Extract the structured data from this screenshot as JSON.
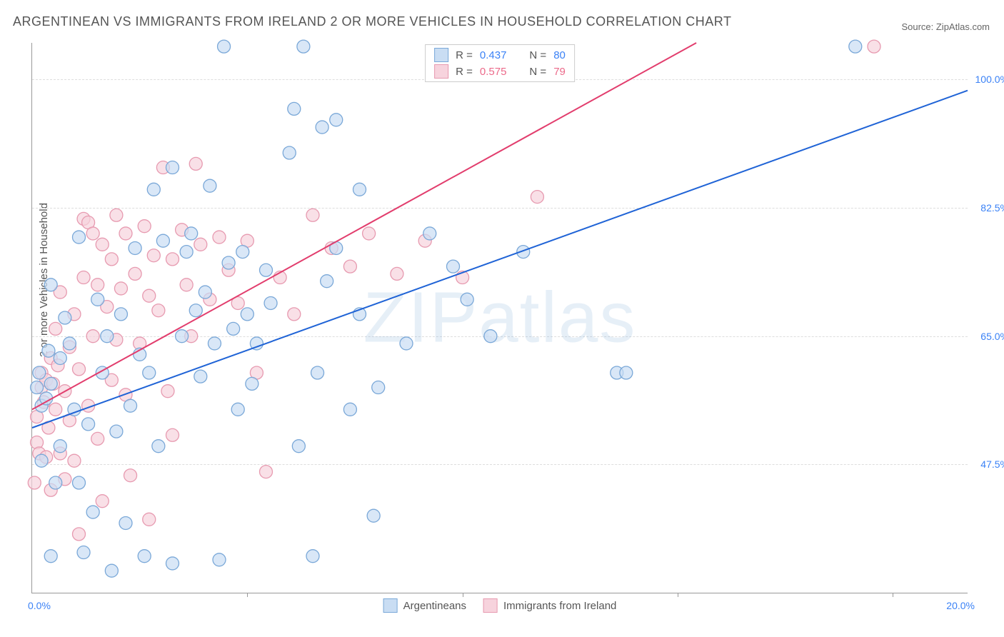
{
  "title": "ARGENTINEAN VS IMMIGRANTS FROM IRELAND 2 OR MORE VEHICLES IN HOUSEHOLD CORRELATION CHART",
  "source": "Source: ZipAtlas.com",
  "ylabel": "2 or more Vehicles in Household",
  "watermark": "ZIPatlas",
  "chart": {
    "type": "scatter",
    "xlim": [
      0,
      20
    ],
    "ylim": [
      30,
      105
    ],
    "x_tick_left": "0.0%",
    "x_tick_right": "20.0%",
    "x_minor_ticks": [
      4.6,
      9.2,
      13.8,
      18.4
    ],
    "y_ticks": [
      {
        "v": 47.5,
        "label": "47.5%"
      },
      {
        "v": 65.0,
        "label": "65.0%"
      },
      {
        "v": 82.5,
        "label": "82.5%"
      },
      {
        "v": 100.0,
        "label": "100.0%"
      }
    ],
    "grid_color": "#dddddd",
    "background_color": "#ffffff",
    "marker_radius": 9,
    "marker_stroke_width": 1.3,
    "series": [
      {
        "name": "Argentineans",
        "fill": "#c9ddf3",
        "stroke": "#7aa8d8",
        "line_color": "#1f63d6",
        "line_width": 2,
        "R": "0.437",
        "N": "80",
        "trend": {
          "x1": 0,
          "y1": 52.5,
          "x2": 20,
          "y2": 98.5
        },
        "points": [
          [
            0.1,
            58.0
          ],
          [
            0.15,
            60.0
          ],
          [
            0.2,
            48.0
          ],
          [
            0.2,
            55.5
          ],
          [
            0.3,
            56.5
          ],
          [
            0.35,
            63.0
          ],
          [
            0.4,
            58.5
          ],
          [
            0.4,
            72.0
          ],
          [
            0.4,
            35.0
          ],
          [
            0.5,
            45.0
          ],
          [
            0.6,
            62.0
          ],
          [
            0.6,
            50.0
          ],
          [
            0.7,
            67.5
          ],
          [
            0.8,
            64.0
          ],
          [
            0.9,
            55.0
          ],
          [
            1.0,
            45.0
          ],
          [
            1.0,
            78.5
          ],
          [
            1.1,
            35.5
          ],
          [
            1.2,
            53.0
          ],
          [
            1.3,
            41.0
          ],
          [
            1.4,
            70.0
          ],
          [
            1.5,
            60.0
          ],
          [
            1.6,
            65.0
          ],
          [
            1.7,
            33.0
          ],
          [
            1.8,
            52.0
          ],
          [
            1.9,
            68.0
          ],
          [
            2.0,
            39.5
          ],
          [
            2.1,
            55.5
          ],
          [
            2.2,
            77.0
          ],
          [
            2.3,
            62.5
          ],
          [
            2.4,
            35.0
          ],
          [
            2.5,
            60.0
          ],
          [
            2.6,
            85.0
          ],
          [
            2.7,
            50.0
          ],
          [
            2.8,
            78.0
          ],
          [
            3.0,
            88.0
          ],
          [
            3.0,
            34.0
          ],
          [
            3.2,
            65.0
          ],
          [
            3.3,
            76.5
          ],
          [
            3.4,
            79.0
          ],
          [
            3.5,
            68.5
          ],
          [
            3.6,
            59.5
          ],
          [
            3.7,
            71.0
          ],
          [
            3.8,
            85.5
          ],
          [
            3.9,
            64.0
          ],
          [
            4.0,
            34.5
          ],
          [
            4.1,
            104.5
          ],
          [
            4.2,
            75.0
          ],
          [
            4.3,
            66.0
          ],
          [
            4.4,
            55.0
          ],
          [
            4.5,
            76.5
          ],
          [
            4.6,
            68.0
          ],
          [
            4.7,
            58.5
          ],
          [
            4.8,
            64.0
          ],
          [
            5.0,
            74.0
          ],
          [
            5.1,
            69.5
          ],
          [
            5.5,
            90.0
          ],
          [
            5.6,
            96.0
          ],
          [
            5.7,
            50.0
          ],
          [
            5.8,
            104.5
          ],
          [
            6.0,
            35.0
          ],
          [
            6.1,
            60.0
          ],
          [
            6.2,
            93.5
          ],
          [
            6.3,
            72.5
          ],
          [
            6.5,
            77.0
          ],
          [
            6.5,
            94.5
          ],
          [
            6.8,
            55.0
          ],
          [
            7.0,
            68.0
          ],
          [
            7.0,
            85.0
          ],
          [
            7.3,
            40.5
          ],
          [
            7.4,
            58.0
          ],
          [
            8.0,
            64.0
          ],
          [
            8.5,
            79.0
          ],
          [
            9.0,
            74.5
          ],
          [
            9.3,
            70.0
          ],
          [
            9.8,
            65.0
          ],
          [
            10.5,
            76.5
          ],
          [
            12.5,
            60.0
          ],
          [
            12.7,
            60.0
          ],
          [
            17.6,
            104.5
          ]
        ]
      },
      {
        "name": "Immigrants from Ireland",
        "fill": "#f7d3dd",
        "stroke": "#e79ab0",
        "line_color": "#e23d6d",
        "line_width": 2,
        "R": "0.575",
        "N": "79",
        "trend": {
          "x1": 0,
          "y1": 55.0,
          "x2": 14.2,
          "y2": 105.0
        },
        "points": [
          [
            0.05,
            45.0
          ],
          [
            0.1,
            50.5
          ],
          [
            0.1,
            54.0
          ],
          [
            0.15,
            49.0
          ],
          [
            0.2,
            58.0
          ],
          [
            0.2,
            60.0
          ],
          [
            0.25,
            56.0
          ],
          [
            0.3,
            48.5
          ],
          [
            0.3,
            59.0
          ],
          [
            0.35,
            52.5
          ],
          [
            0.4,
            62.0
          ],
          [
            0.4,
            44.0
          ],
          [
            0.45,
            58.5
          ],
          [
            0.5,
            66.0
          ],
          [
            0.5,
            55.0
          ],
          [
            0.55,
            61.0
          ],
          [
            0.6,
            49.0
          ],
          [
            0.6,
            71.0
          ],
          [
            0.7,
            57.5
          ],
          [
            0.7,
            45.5
          ],
          [
            0.8,
            63.5
          ],
          [
            0.8,
            53.5
          ],
          [
            0.9,
            68.0
          ],
          [
            0.9,
            48.0
          ],
          [
            1.0,
            60.5
          ],
          [
            1.0,
            38.0
          ],
          [
            1.1,
            73.0
          ],
          [
            1.1,
            81.0
          ],
          [
            1.2,
            80.5
          ],
          [
            1.2,
            55.5
          ],
          [
            1.3,
            79.0
          ],
          [
            1.3,
            65.0
          ],
          [
            1.4,
            51.0
          ],
          [
            1.4,
            72.0
          ],
          [
            1.5,
            77.5
          ],
          [
            1.5,
            42.5
          ],
          [
            1.6,
            69.0
          ],
          [
            1.7,
            75.5
          ],
          [
            1.7,
            59.0
          ],
          [
            1.8,
            81.5
          ],
          [
            1.8,
            64.5
          ],
          [
            1.9,
            71.5
          ],
          [
            2.0,
            79.0
          ],
          [
            2.0,
            57.0
          ],
          [
            2.1,
            46.0
          ],
          [
            2.2,
            73.5
          ],
          [
            2.3,
            64.0
          ],
          [
            2.4,
            80.0
          ],
          [
            2.5,
            70.5
          ],
          [
            2.5,
            40.0
          ],
          [
            2.6,
            76.0
          ],
          [
            2.7,
            68.5
          ],
          [
            2.8,
            88.0
          ],
          [
            2.9,
            57.5
          ],
          [
            3.0,
            75.5
          ],
          [
            3.0,
            51.5
          ],
          [
            3.2,
            79.5
          ],
          [
            3.3,
            72.0
          ],
          [
            3.4,
            65.0
          ],
          [
            3.5,
            88.5
          ],
          [
            3.6,
            77.5
          ],
          [
            3.8,
            70.0
          ],
          [
            4.0,
            78.5
          ],
          [
            4.2,
            74.0
          ],
          [
            4.4,
            69.5
          ],
          [
            4.6,
            78.0
          ],
          [
            4.8,
            60.0
          ],
          [
            5.0,
            46.5
          ],
          [
            5.3,
            73.0
          ],
          [
            5.6,
            68.0
          ],
          [
            6.0,
            81.5
          ],
          [
            6.4,
            77.0
          ],
          [
            6.8,
            74.5
          ],
          [
            7.2,
            79.0
          ],
          [
            7.8,
            73.5
          ],
          [
            8.4,
            78.0
          ],
          [
            9.2,
            73.0
          ],
          [
            10.8,
            84.0
          ],
          [
            18.0,
            104.5
          ]
        ]
      }
    ]
  },
  "bottom_legend": {
    "item1": "Argentineans",
    "item2": "Immigrants from Ireland"
  },
  "stats_legend": {
    "r_label": "R =",
    "n_label": "N ="
  }
}
